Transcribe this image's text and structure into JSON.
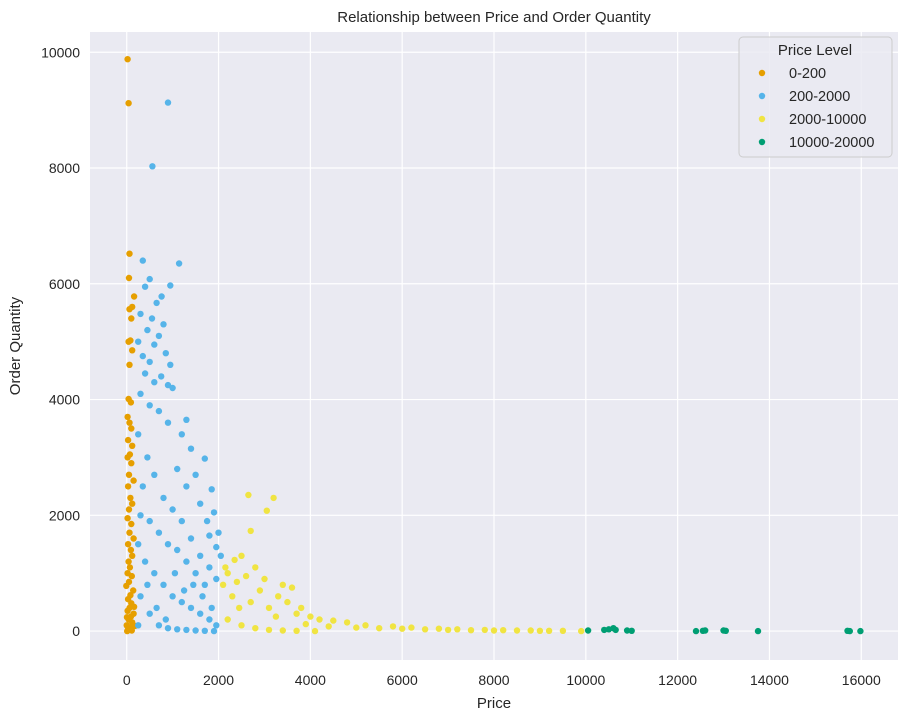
{
  "chart_data": {
    "type": "scatter",
    "title": "Relationship between Price and Order Quantity",
    "xlabel": "Price",
    "ylabel": "Order Quantity",
    "xlim": [
      -800,
      16800
    ],
    "ylim": [
      -500,
      10350
    ],
    "xticks": [
      0,
      2000,
      4000,
      6000,
      8000,
      10000,
      12000,
      14000,
      16000
    ],
    "yticks": [
      0,
      2000,
      4000,
      6000,
      8000,
      10000
    ],
    "grid": true,
    "background_color": "#eaeaf2",
    "legend": {
      "title": "Price Level",
      "placement": "top-right"
    },
    "series": [
      {
        "name": "0-200",
        "color": "#e69f00",
        "points": [
          [
            20,
            9880
          ],
          [
            40,
            9120
          ],
          [
            60,
            6520
          ],
          [
            50,
            6100
          ],
          [
            160,
            5780
          ],
          [
            120,
            5600
          ],
          [
            60,
            5560
          ],
          [
            100,
            5400
          ],
          [
            80,
            5020
          ],
          [
            40,
            5000
          ],
          [
            120,
            4850
          ],
          [
            60,
            4600
          ],
          [
            40,
            4010
          ],
          [
            90,
            3950
          ],
          [
            20,
            3700
          ],
          [
            60,
            3600
          ],
          [
            100,
            3500
          ],
          [
            30,
            3300
          ],
          [
            120,
            3200
          ],
          [
            70,
            3050
          ],
          [
            20,
            3000
          ],
          [
            100,
            2900
          ],
          [
            50,
            2700
          ],
          [
            150,
            2600
          ],
          [
            30,
            2500
          ],
          [
            80,
            2300
          ],
          [
            120,
            2200
          ],
          [
            50,
            2100
          ],
          [
            20,
            1950
          ],
          [
            100,
            1850
          ],
          [
            60,
            1700
          ],
          [
            150,
            1600
          ],
          [
            30,
            1500
          ],
          [
            90,
            1400
          ],
          [
            120,
            1300
          ],
          [
            40,
            1200
          ],
          [
            70,
            1100
          ],
          [
            20,
            1000
          ],
          [
            110,
            950
          ],
          [
            50,
            850
          ],
          [
            -10,
            780
          ],
          [
            140,
            700
          ],
          [
            80,
            620
          ],
          [
            30,
            550
          ],
          [
            100,
            480
          ],
          [
            60,
            400
          ],
          [
            20,
            350
          ],
          [
            150,
            300
          ],
          [
            90,
            250
          ],
          [
            40,
            200
          ],
          [
            120,
            150
          ],
          [
            0,
            100
          ],
          [
            70,
            60
          ],
          [
            30,
            30
          ],
          [
            110,
            10
          ],
          [
            10,
            0
          ],
          [
            180,
            90
          ],
          [
            160,
            420
          ],
          [
            5,
            240
          ]
        ]
      },
      {
        "name": "200-2000",
        "color": "#56b4e9",
        "points": [
          [
            900,
            9130
          ],
          [
            560,
            8030
          ],
          [
            1140,
            6350
          ],
          [
            350,
            6400
          ],
          [
            950,
            5970
          ],
          [
            500,
            6080
          ],
          [
            400,
            5950
          ],
          [
            760,
            5780
          ],
          [
            650,
            5670
          ],
          [
            300,
            5480
          ],
          [
            550,
            5400
          ],
          [
            800,
            5300
          ],
          [
            450,
            5200
          ],
          [
            700,
            5100
          ],
          [
            250,
            5000
          ],
          [
            600,
            4950
          ],
          [
            850,
            4800
          ],
          [
            350,
            4750
          ],
          [
            500,
            4650
          ],
          [
            950,
            4600
          ],
          [
            1000,
            4200
          ],
          [
            900,
            4250
          ],
          [
            750,
            4400
          ],
          [
            400,
            4450
          ],
          [
            600,
            4300
          ],
          [
            1300,
            3650
          ],
          [
            1200,
            3400
          ],
          [
            1400,
            3150
          ],
          [
            1700,
            2980
          ],
          [
            1500,
            2700
          ],
          [
            1850,
            2450
          ],
          [
            1600,
            2200
          ],
          [
            1300,
            2500
          ],
          [
            1100,
            2800
          ],
          [
            1900,
            2050
          ],
          [
            2000,
            1700
          ],
          [
            2050,
            1300
          ],
          [
            1950,
            1450
          ],
          [
            1800,
            1650
          ],
          [
            1750,
            1900
          ],
          [
            900,
            3600
          ],
          [
            700,
            3800
          ],
          [
            500,
            3900
          ],
          [
            300,
            4100
          ],
          [
            250,
            3400
          ],
          [
            450,
            3000
          ],
          [
            350,
            2500
          ],
          [
            600,
            2700
          ],
          [
            800,
            2300
          ],
          [
            1000,
            2100
          ],
          [
            1200,
            1900
          ],
          [
            1400,
            1600
          ],
          [
            1600,
            1300
          ],
          [
            1800,
            1100
          ],
          [
            1950,
            900
          ],
          [
            1700,
            800
          ],
          [
            1500,
            1000
          ],
          [
            1300,
            1200
          ],
          [
            1100,
            1400
          ],
          [
            900,
            1500
          ],
          [
            700,
            1700
          ],
          [
            500,
            1900
          ],
          [
            300,
            2000
          ],
          [
            250,
            1500
          ],
          [
            400,
            1200
          ],
          [
            600,
            1000
          ],
          [
            800,
            800
          ],
          [
            1000,
            600
          ],
          [
            1200,
            500
          ],
          [
            1400,
            400
          ],
          [
            1600,
            300
          ],
          [
            1800,
            200
          ],
          [
            1950,
            100
          ],
          [
            300,
            600
          ],
          [
            500,
            300
          ],
          [
            700,
            100
          ],
          [
            900,
            50
          ],
          [
            1100,
            30
          ],
          [
            1300,
            20
          ],
          [
            1500,
            10
          ],
          [
            1700,
            5
          ],
          [
            1900,
            0
          ],
          [
            250,
            100
          ],
          [
            450,
            800
          ],
          [
            650,
            400
          ],
          [
            850,
            200
          ],
          [
            1050,
            1000
          ],
          [
            1250,
            700
          ],
          [
            1450,
            800
          ],
          [
            1650,
            600
          ],
          [
            1850,
            400
          ]
        ]
      },
      {
        "name": "2000-10000",
        "color": "#f0e442",
        "points": [
          [
            2650,
            2350
          ],
          [
            3200,
            2300
          ],
          [
            3050,
            2080
          ],
          [
            2700,
            1730
          ],
          [
            2350,
            1230
          ],
          [
            2500,
            1300
          ],
          [
            2800,
            1100
          ],
          [
            2200,
            1000
          ],
          [
            2600,
            950
          ],
          [
            3000,
            900
          ],
          [
            3400,
            800
          ],
          [
            3600,
            750
          ],
          [
            2400,
            850
          ],
          [
            2900,
            700
          ],
          [
            3300,
            600
          ],
          [
            3500,
            500
          ],
          [
            3800,
            400
          ],
          [
            2100,
            800
          ],
          [
            2300,
            600
          ],
          [
            2700,
            500
          ],
          [
            3100,
            400
          ],
          [
            3700,
            300
          ],
          [
            4000,
            250
          ],
          [
            4200,
            200
          ],
          [
            4500,
            180
          ],
          [
            4800,
            150
          ],
          [
            3900,
            120
          ],
          [
            4400,
            80
          ],
          [
            5000,
            60
          ],
          [
            5500,
            50
          ],
          [
            6000,
            40
          ],
          [
            6500,
            30
          ],
          [
            7000,
            20
          ],
          [
            7500,
            15
          ],
          [
            8000,
            10
          ],
          [
            8500,
            10
          ],
          [
            9000,
            5
          ],
          [
            9500,
            5
          ],
          [
            9900,
            0
          ],
          [
            5200,
            100
          ],
          [
            5800,
            80
          ],
          [
            6200,
            60
          ],
          [
            6800,
            40
          ],
          [
            7200,
            30
          ],
          [
            7800,
            20
          ],
          [
            8200,
            15
          ],
          [
            8800,
            10
          ],
          [
            9200,
            5
          ],
          [
            2200,
            200
          ],
          [
            2500,
            100
          ],
          [
            2800,
            50
          ],
          [
            3100,
            20
          ],
          [
            3400,
            10
          ],
          [
            3700,
            5
          ],
          [
            4100,
            0
          ],
          [
            2150,
            1100
          ],
          [
            2450,
            400
          ],
          [
            3250,
            250
          ]
        ]
      },
      {
        "name": "10000-20000",
        "color": "#009e73",
        "points": [
          [
            10050,
            10
          ],
          [
            10400,
            20
          ],
          [
            10500,
            30
          ],
          [
            10600,
            50
          ],
          [
            10650,
            20
          ],
          [
            10900,
            10
          ],
          [
            11000,
            5
          ],
          [
            12400,
            0
          ],
          [
            12550,
            5
          ],
          [
            12600,
            10
          ],
          [
            13000,
            10
          ],
          [
            13050,
            5
          ],
          [
            13750,
            0
          ],
          [
            15700,
            5
          ],
          [
            15750,
            0
          ],
          [
            15980,
            0
          ]
        ]
      }
    ]
  }
}
